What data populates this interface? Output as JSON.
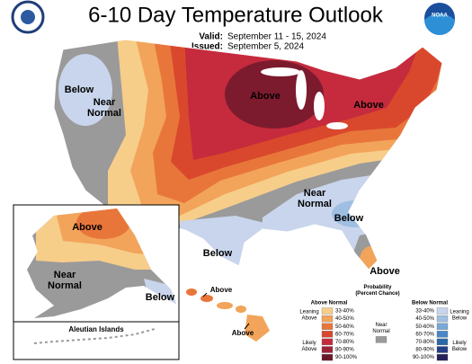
{
  "header": {
    "title": "6-10 Day Temperature Outlook",
    "valid_label": "Valid:",
    "valid_dates": "September 11 - 15, 2024",
    "issued_label": "Issued:",
    "issued_date": "September 5, 2024"
  },
  "logo": {
    "noaa": "NOAA"
  },
  "conus_labels": [
    [
      "Below"
    ],
    [
      "Near",
      "Normal"
    ],
    [
      "Above"
    ],
    [
      "Above"
    ],
    [
      "Near",
      "Normal"
    ],
    [
      "Below"
    ],
    [
      "Below"
    ],
    [
      "Above"
    ]
  ],
  "alaska_labels": [
    [
      "Above"
    ],
    [
      "Near",
      "Normal"
    ],
    [
      "Below"
    ]
  ],
  "aleutian_label": "Aleutian Islands",
  "hawaii_labels": [
    "Above",
    "Above"
  ],
  "legend": {
    "title": [
      "Probability",
      "(Percent Chance)"
    ],
    "above_header": "Above Normal",
    "below_header": "Below Normal",
    "above_bins": [
      {
        "label": "33-40%",
        "color": "#f7cd8a"
      },
      {
        "label": "40-50%",
        "color": "#f2a45a"
      },
      {
        "label": "50-60%",
        "color": "#e8763b"
      },
      {
        "label": "60-70%",
        "color": "#d9482c"
      },
      {
        "label": "70-80%",
        "color": "#c52b3d"
      },
      {
        "label": "80-90%",
        "color": "#9e2138"
      },
      {
        "label": "90-100%",
        "color": "#6a1828"
      }
    ],
    "below_bins": [
      {
        "label": "33-40%",
        "color": "#c8d5ec"
      },
      {
        "label": "40-50%",
        "color": "#9fbfe2"
      },
      {
        "label": "50-60%",
        "color": "#77a8d7"
      },
      {
        "label": "60-70%",
        "color": "#4a87c5"
      },
      {
        "label": "70-80%",
        "color": "#2b68a7"
      },
      {
        "label": "80-90%",
        "color": "#233e85"
      },
      {
        "label": "90-100%",
        "color": "#23205a"
      }
    ],
    "leaning_above": [
      "Leaning",
      "Above"
    ],
    "likely_above": [
      "Likely",
      "Above"
    ],
    "near_normal": [
      "Near",
      "Normal"
    ],
    "near_normal_color": "#9a9a9a",
    "leaning_below": [
      "Leaning",
      "Below"
    ],
    "likely_below": [
      "Likely",
      "Below"
    ]
  }
}
